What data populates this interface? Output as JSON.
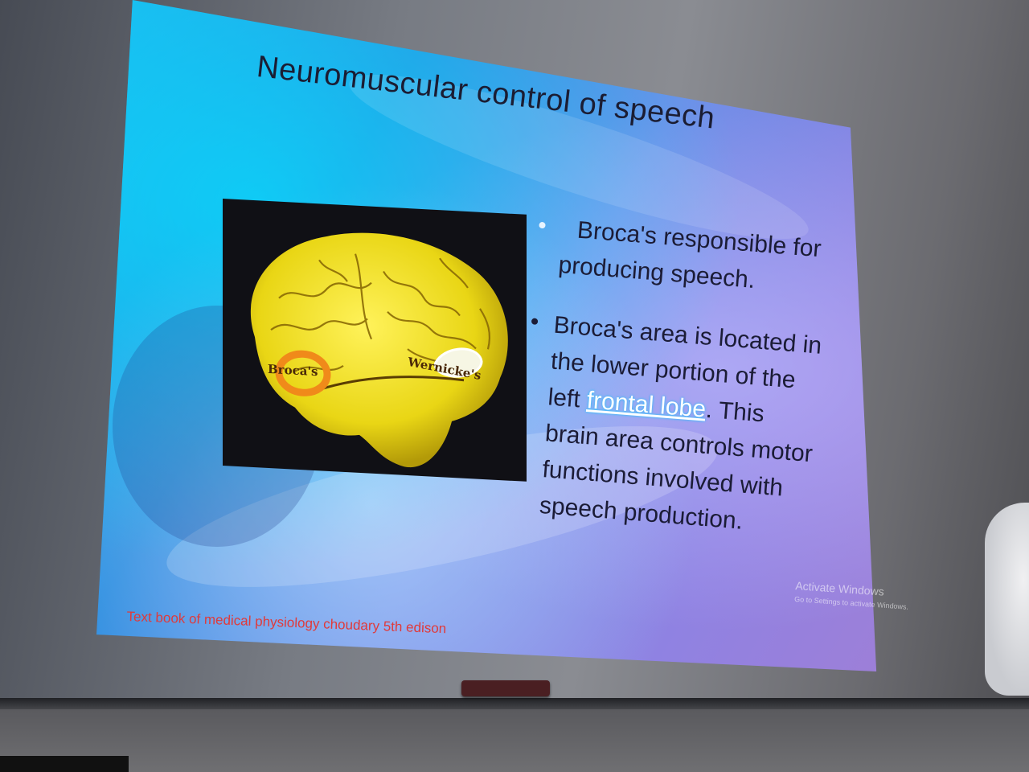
{
  "slide": {
    "title": "Neuromuscular control of speech",
    "bullets": [
      {
        "text": "Broca's responsible for producing speech."
      },
      {
        "before": "Broca's area is located in the lower portion of the left ",
        "link": "frontal lobe",
        "after": ". This brain area controls motor functions involved with speech production."
      }
    ],
    "figure": {
      "labels": {
        "broca": "Broca's",
        "wernicke": "Wernicke's"
      }
    },
    "citation": "Text book of medical physiology choudary 5th edison"
  },
  "watermark": {
    "title": "Activate Windows",
    "subtitle": "Go to Settings to activate Windows."
  },
  "colors": {
    "title_text": "#1b1d33",
    "citation": "#e03a3a",
    "brain": "#f2e21c",
    "broca_marker": "#f08a1a",
    "wernicke_marker": "#ffffff"
  }
}
